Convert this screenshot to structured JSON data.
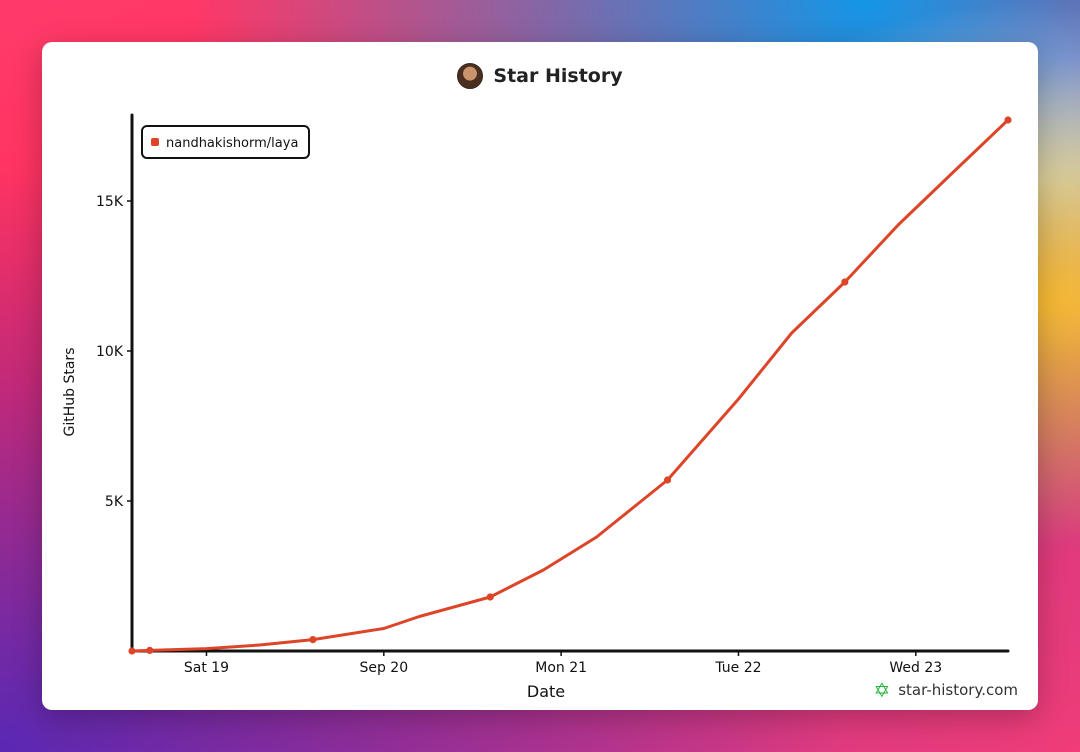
{
  "page": {
    "watermark_text": "star-history.com"
  },
  "chart_data": {
    "type": "line",
    "title": "Star History",
    "xlabel": "Date",
    "ylabel": "GitHub Stars",
    "x_ticks": [
      "Sat 19",
      "Sep 20",
      "Mon 21",
      "Tue 22",
      "Wed 23"
    ],
    "y_ticks": [
      "5K",
      "10K",
      "15K"
    ],
    "y_tick_values": [
      5000,
      10000,
      15000
    ],
    "ylim": [
      0,
      17800
    ],
    "xlim_days": [
      18.58,
      23.52
    ],
    "x_tick_days": [
      19,
      20,
      21,
      22,
      23
    ],
    "legend_position": "top-left",
    "grid": false,
    "series": [
      {
        "name": "nandhakishorm/laya",
        "color": "#dd4528",
        "points": [
          {
            "day": 18.58,
            "stars": 0
          },
          {
            "day": 18.68,
            "stars": 20
          },
          {
            "day": 19.0,
            "stars": 80
          },
          {
            "day": 19.3,
            "stars": 200
          },
          {
            "day": 19.6,
            "stars": 380
          },
          {
            "day": 20.0,
            "stars": 750
          },
          {
            "day": 20.2,
            "stars": 1150
          },
          {
            "day": 20.6,
            "stars": 1800
          },
          {
            "day": 20.9,
            "stars": 2700
          },
          {
            "day": 21.2,
            "stars": 3800
          },
          {
            "day": 21.6,
            "stars": 5700
          },
          {
            "day": 22.0,
            "stars": 8400
          },
          {
            "day": 22.3,
            "stars": 10600
          },
          {
            "day": 22.6,
            "stars": 12300
          },
          {
            "day": 22.9,
            "stars": 14200
          },
          {
            "day": 23.2,
            "stars": 15900
          },
          {
            "day": 23.52,
            "stars": 17700
          }
        ],
        "markers": [
          {
            "day": 18.58,
            "stars": 0
          },
          {
            "day": 18.68,
            "stars": 20
          },
          {
            "day": 19.6,
            "stars": 380
          },
          {
            "day": 20.6,
            "stars": 1800
          },
          {
            "day": 21.6,
            "stars": 5700
          },
          {
            "day": 22.6,
            "stars": 12300
          },
          {
            "day": 23.52,
            "stars": 17700
          }
        ]
      }
    ]
  },
  "colors": {
    "axis": "#111111",
    "line": "#dd4528",
    "card": "#ffffff"
  }
}
